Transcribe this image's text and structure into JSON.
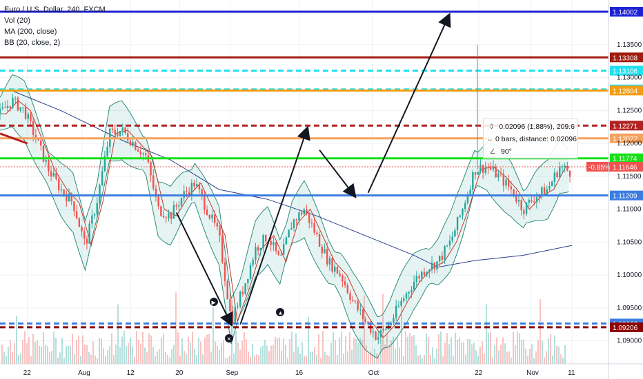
{
  "legend": {
    "symbol": "Euro / U.S. Dollar, 240, FXCM",
    "volume": "Vol (20)",
    "ma": "MA (200, close)",
    "bb": "BB (20, close, 2)"
  },
  "measure": {
    "line1": "0.02096 (1.88%), 209.6",
    "line2": "0 bars, distance: 0.02096",
    "line3": "90°"
  },
  "chart_data": {
    "type": "candlestick",
    "ylim": [
      1.0865,
      1.1418
    ],
    "yticks": [
      "1.13500",
      "1.13000",
      "1.12500",
      "1.12000",
      "1.11500",
      "1.11000",
      "1.10500",
      "1.10000",
      "1.09500",
      "1.09000"
    ],
    "xticks": [
      "22",
      "Aug",
      "12",
      "20",
      "Sep",
      "16",
      "Oct",
      "22",
      "Nov",
      "11"
    ],
    "last_price": 1.11646,
    "change_label": "-0.85%",
    "horizontal_levels": [
      {
        "price": 1.14002,
        "label": "1.14002",
        "color": "#1e22d6",
        "style": "solid"
      },
      {
        "price": 1.13308,
        "label": "1.13308",
        "color": "#a01c0e",
        "style": "solid"
      },
      {
        "price": 1.13106,
        "label": "1.13106",
        "color": "#20e0f0",
        "style": "dashed"
      },
      {
        "price": 1.12821,
        "label": "1.12821",
        "color": "#20e0f0",
        "style": "dashed"
      },
      {
        "price": 1.12804,
        "label": "1.12804",
        "color": "#f39c12",
        "style": "solid"
      },
      {
        "price": 1.12271,
        "label": "1.12271",
        "color": "#b22222",
        "style": "dashed"
      },
      {
        "price": 1.12077,
        "label": "1.12077",
        "color": "#f5a25d",
        "style": "solid"
      },
      {
        "price": 1.11774,
        "label": "1.11774",
        "color": "#16e016",
        "style": "solid"
      },
      {
        "price": 1.11209,
        "label": "1.11209",
        "color": "#3b7de0",
        "style": "solid"
      },
      {
        "price": 1.09263,
        "label": "1.09263",
        "color": "#3b7de0",
        "style": "dashed"
      },
      {
        "price": 1.09206,
        "label": "1.09206",
        "color": "#8b0000",
        "style": "dashed"
      }
    ],
    "price_path": [
      [
        0,
        1.1245
      ],
      [
        0.02,
        1.1265
      ],
      [
        0.04,
        1.125
      ],
      [
        0.06,
        1.1205
      ],
      [
        0.08,
        1.116
      ],
      [
        0.1,
        1.113
      ],
      [
        0.12,
        1.111
      ],
      [
        0.14,
        1.1045
      ],
      [
        0.16,
        1.1115
      ],
      [
        0.18,
        1.1215
      ],
      [
        0.2,
        1.122
      ],
      [
        0.22,
        1.12
      ],
      [
        0.24,
        1.118
      ],
      [
        0.26,
        1.11
      ],
      [
        0.28,
        1.109
      ],
      [
        0.3,
        1.112
      ],
      [
        0.32,
        1.114
      ],
      [
        0.34,
        1.11
      ],
      [
        0.36,
        1.106
      ],
      [
        0.38,
        1.093
      ],
      [
        0.4,
        1.098
      ],
      [
        0.42,
        1.104
      ],
      [
        0.44,
        1.106
      ],
      [
        0.46,
        1.102
      ],
      [
        0.48,
        1.108
      ],
      [
        0.5,
        1.11
      ],
      [
        0.52,
        1.106
      ],
      [
        0.54,
        1.102
      ],
      [
        0.56,
        1.1
      ],
      [
        0.58,
        1.096
      ],
      [
        0.6,
        1.093
      ],
      [
        0.62,
        1.0905
      ],
      [
        0.64,
        1.0925
      ],
      [
        0.66,
        1.096
      ],
      [
        0.68,
        1.099
      ],
      [
        0.7,
        1.101
      ],
      [
        0.72,
        1.102
      ],
      [
        0.74,
        1.105
      ],
      [
        0.76,
        1.11
      ],
      [
        0.78,
        1.116
      ],
      [
        0.8,
        1.1165
      ],
      [
        0.82,
        1.115
      ],
      [
        0.84,
        1.113
      ],
      [
        0.86,
        1.11
      ],
      [
        0.88,
        1.112
      ],
      [
        0.9,
        1.113
      ],
      [
        0.92,
        1.1165
      ],
      [
        0.94,
        1.1155
      ]
    ],
    "ma200_path": [
      [
        0.02,
        1.128
      ],
      [
        0.1,
        1.125
      ],
      [
        0.2,
        1.1205
      ],
      [
        0.28,
        1.1175
      ],
      [
        0.36,
        1.113
      ],
      [
        0.44,
        1.1115
      ],
      [
        0.52,
        1.109
      ],
      [
        0.6,
        1.106
      ],
      [
        0.68,
        1.103
      ],
      [
        0.72,
        1.1012
      ],
      [
        0.78,
        1.1022
      ],
      [
        0.86,
        1.103
      ],
      [
        0.94,
        1.1045
      ]
    ],
    "arrows": [
      {
        "from": [
          0.29,
          1.1095
        ],
        "to": [
          0.38,
          1.0925
        ]
      },
      {
        "from": [
          0.395,
          1.0925
        ],
        "to": [
          0.505,
          1.1223
        ]
      },
      {
        "from": [
          0.525,
          1.119
        ],
        "to": [
          0.583,
          1.112
        ]
      },
      {
        "from": [
          0.605,
          1.1125
        ],
        "to": [
          0.738,
          1.1395
        ]
      }
    ]
  }
}
